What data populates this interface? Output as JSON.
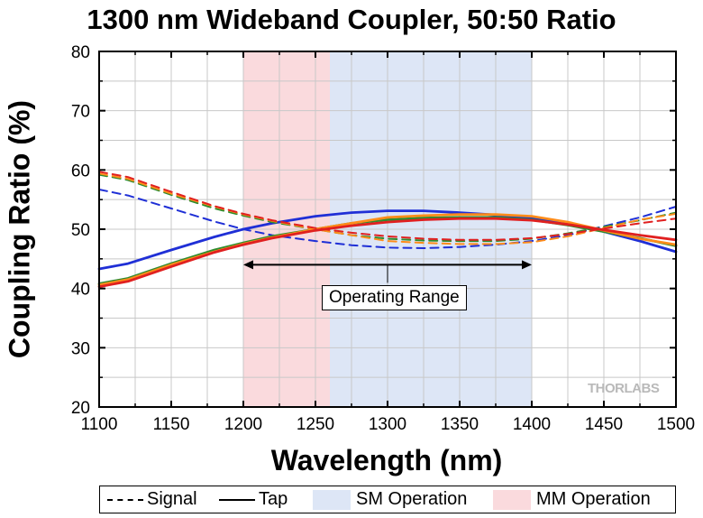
{
  "chart_data": {
    "type": "line",
    "title": "1300 nm Wideband Coupler, 50:50 Ratio",
    "xlabel": "Wavelength (nm)",
    "ylabel": "Coupling Ratio (%)",
    "xlim": [
      1100,
      1500
    ],
    "ylim": [
      20,
      80
    ],
    "xticks": [
      1100,
      1150,
      1200,
      1250,
      1300,
      1350,
      1400,
      1450,
      1500
    ],
    "yticks": [
      20,
      30,
      40,
      50,
      60,
      70,
      80
    ],
    "grid": true,
    "legend_position": "bottom",
    "bands": [
      {
        "name": "MM Operation",
        "x": [
          1200,
          1260
        ],
        "color": "#fadadd"
      },
      {
        "name": "SM Operation",
        "x": [
          1260,
          1400
        ],
        "color": "#dde6f6"
      }
    ],
    "annotation": {
      "text": "Operating Range",
      "x": [
        1200,
        1400
      ],
      "y": 44
    },
    "watermark": "THORLABS",
    "legend": [
      {
        "label": "Signal",
        "style": "dashed"
      },
      {
        "label": "Tap",
        "style": "solid"
      },
      {
        "label": "SM Operation",
        "style": "band",
        "color": "#dde6f6"
      },
      {
        "label": "MM Operation",
        "style": "band",
        "color": "#fadadd"
      }
    ],
    "x": [
      1100,
      1120,
      1150,
      1180,
      1200,
      1220,
      1250,
      1275,
      1300,
      1325,
      1350,
      1375,
      1400,
      1425,
      1450,
      1475,
      1500
    ],
    "series": [
      {
        "role": "Signal",
        "color": "#1f2fd6",
        "style": "dashed",
        "values": [
          56.7,
          55.7,
          53.5,
          51.3,
          50.0,
          49.0,
          48.0,
          47.3,
          46.9,
          46.8,
          47.0,
          47.4,
          48.0,
          49.0,
          50.5,
          52.0,
          53.8
        ]
      },
      {
        "role": "Tap",
        "color": "#1f2fd6",
        "style": "solid",
        "values": [
          43.3,
          44.2,
          46.5,
          48.7,
          50.0,
          51.0,
          52.2,
          52.8,
          53.1,
          53.1,
          52.8,
          52.4,
          51.8,
          51.0,
          49.6,
          48.0,
          46.2
        ]
      },
      {
        "role": "Signal",
        "color": "#2e8b2e",
        "style": "dashed",
        "values": [
          59.2,
          58.3,
          55.8,
          53.5,
          52.3,
          51.2,
          50.0,
          49.0,
          48.4,
          48.1,
          48.0,
          48.0,
          48.4,
          49.3,
          50.4,
          51.5,
          52.8
        ]
      },
      {
        "role": "Tap",
        "color": "#2e8b2e",
        "style": "solid",
        "values": [
          40.8,
          41.7,
          44.2,
          46.5,
          47.7,
          48.8,
          50.0,
          51.0,
          51.6,
          51.9,
          52.0,
          52.0,
          51.6,
          50.7,
          49.6,
          48.5,
          47.2
        ]
      },
      {
        "role": "Signal",
        "color": "#ff8c1a",
        "style": "dashed",
        "values": [
          59.4,
          58.5,
          56.0,
          53.8,
          52.5,
          51.4,
          50.0,
          49.0,
          48.0,
          47.7,
          47.5,
          47.5,
          47.8,
          48.8,
          50.2,
          51.6,
          52.6
        ]
      },
      {
        "role": "Tap",
        "color": "#ff8c1a",
        "style": "solid",
        "values": [
          40.6,
          41.5,
          44.0,
          46.2,
          47.5,
          48.6,
          50.0,
          51.0,
          52.0,
          52.3,
          52.5,
          52.5,
          52.2,
          51.2,
          49.8,
          48.4,
          47.4
        ]
      },
      {
        "role": "Signal",
        "color": "#e02020",
        "style": "dashed",
        "values": [
          59.7,
          58.8,
          56.3,
          53.9,
          52.6,
          51.5,
          50.2,
          49.4,
          48.8,
          48.4,
          48.2,
          48.2,
          48.5,
          49.2,
          50.1,
          51.0,
          51.8
        ]
      },
      {
        "role": "Tap",
        "color": "#e02020",
        "style": "solid",
        "values": [
          40.3,
          41.2,
          43.7,
          46.1,
          47.4,
          48.5,
          49.8,
          50.6,
          51.2,
          51.6,
          51.8,
          51.8,
          51.5,
          50.8,
          49.9,
          49.0,
          48.2
        ]
      }
    ]
  }
}
